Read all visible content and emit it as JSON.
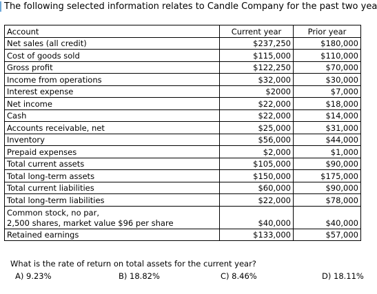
{
  "intro_text": "The following selected information relates to Candle Company for the past two years.",
  "table": {
    "headers": {
      "account": "Account",
      "current": "Current year",
      "prior": "Prior year"
    },
    "rows": [
      {
        "account": "Net sales (all credit)",
        "current": "$237,250",
        "prior": "$180,000"
      },
      {
        "account": "Cost of goods sold",
        "current": "$115,000",
        "prior": "$110,000"
      },
      {
        "account": "Gross profit",
        "current": "$122,250",
        "prior": "$70,000"
      },
      {
        "account": "Income from operations",
        "current": "$32,000",
        "prior": "$30,000"
      },
      {
        "account": "Interest expense",
        "current": "$2000",
        "prior": "$7,000"
      },
      {
        "account": "Net income",
        "current": "$22,000",
        "prior": "$18,000"
      },
      {
        "account": "Cash",
        "current": "$22,000",
        "prior": "$14,000"
      },
      {
        "account": "Accounts receivable, net",
        "current": "$25,000",
        "prior": "$31,000"
      },
      {
        "account": "Inventory",
        "current": "$56,000",
        "prior": "$44,000"
      },
      {
        "account": "Prepaid expenses",
        "current": "$2,000",
        "prior": "$1,000"
      },
      {
        "account": "Total current assets",
        "current": "$105,000",
        "prior": "$90,000"
      },
      {
        "account": "Total long-term assets",
        "current": "$150,000",
        "prior": "$175,000"
      },
      {
        "account": "Total current liabilities",
        "current": "$60,000",
        "prior": "$90,000"
      },
      {
        "account": "Total long-term liabilities",
        "current": "$22,000",
        "prior": "$78,000"
      },
      {
        "account": "Common stock, no par,",
        "account_line2": "2,500 shares, market value $96 per share",
        "current": "$40,000",
        "prior": "$40,000"
      },
      {
        "account": "Retained earnings",
        "current": "$133,000",
        "prior": "$57,000"
      }
    ]
  },
  "question": {
    "text": "What is the rate of return on total assets for the current year?",
    "choices": [
      "A) 9.23%",
      "B) 18.82%",
      "C) 8.46%",
      "D) 18.11%"
    ]
  },
  "accent_color": "#6ea8d8"
}
